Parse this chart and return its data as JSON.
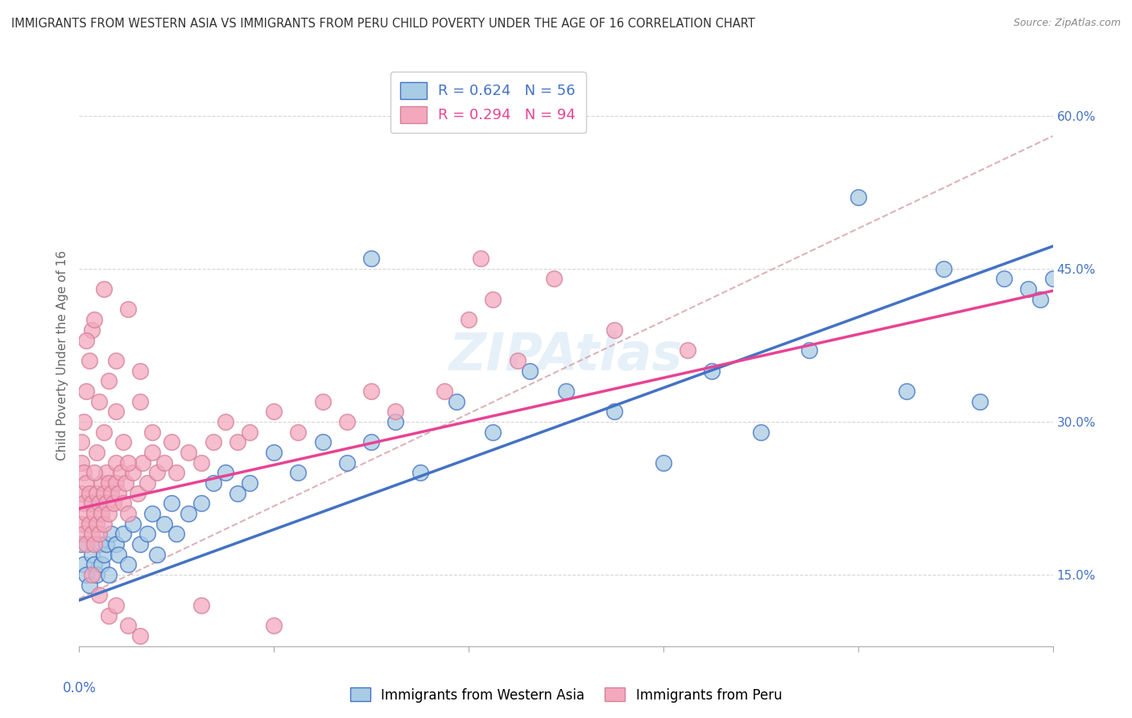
{
  "title": "IMMIGRANTS FROM WESTERN ASIA VS IMMIGRANTS FROM PERU CHILD POVERTY UNDER THE AGE OF 16 CORRELATION CHART",
  "source": "Source: ZipAtlas.com",
  "ylabel": "Child Poverty Under the Age of 16",
  "yticks": [
    0.15,
    0.3,
    0.45,
    0.6
  ],
  "ytick_labels": [
    "15.0%",
    "30.0%",
    "45.0%",
    "60.0%"
  ],
  "xlim": [
    0.0,
    0.4
  ],
  "ylim": [
    0.08,
    0.65
  ],
  "legend1_r": "R = 0.624",
  "legend1_n": "N = 56",
  "legend2_r": "R = 0.294",
  "legend2_n": "N = 94",
  "color_western_asia": "#a8cce4",
  "color_peru": "#f4a8be",
  "color_line_western_asia": "#4472c4",
  "color_line_peru": "#e84393",
  "color_dashed": "#d4a0a8",
  "wa_line_x0": 0.0,
  "wa_line_y0": 0.125,
  "wa_line_x1": 0.4,
  "wa_line_y1": 0.472,
  "pe_line_x0": 0.0,
  "pe_line_y0": 0.215,
  "pe_line_x1": 0.15,
  "pe_line_y1": 0.295,
  "dash_line_x0": 0.1,
  "dash_line_y0": 0.24,
  "dash_line_x1": 0.4,
  "dash_line_y1": 0.58,
  "western_asia_x": [
    0.001,
    0.002,
    0.003,
    0.004,
    0.005,
    0.006,
    0.007,
    0.008,
    0.009,
    0.01,
    0.011,
    0.012,
    0.013,
    0.015,
    0.016,
    0.018,
    0.02,
    0.022,
    0.025,
    0.028,
    0.03,
    0.032,
    0.035,
    0.038,
    0.04,
    0.045,
    0.05,
    0.055,
    0.06,
    0.065,
    0.07,
    0.08,
    0.09,
    0.1,
    0.11,
    0.12,
    0.13,
    0.14,
    0.155,
    0.17,
    0.185,
    0.2,
    0.22,
    0.24,
    0.26,
    0.28,
    0.3,
    0.32,
    0.34,
    0.355,
    0.37,
    0.38,
    0.39,
    0.395,
    0.4,
    0.12
  ],
  "western_asia_y": [
    0.18,
    0.16,
    0.15,
    0.14,
    0.17,
    0.16,
    0.15,
    0.18,
    0.16,
    0.17,
    0.18,
    0.15,
    0.19,
    0.18,
    0.17,
    0.19,
    0.16,
    0.2,
    0.18,
    0.19,
    0.21,
    0.17,
    0.2,
    0.22,
    0.19,
    0.21,
    0.22,
    0.24,
    0.25,
    0.23,
    0.24,
    0.27,
    0.25,
    0.28,
    0.26,
    0.28,
    0.3,
    0.25,
    0.32,
    0.29,
    0.35,
    0.33,
    0.31,
    0.26,
    0.35,
    0.29,
    0.37,
    0.52,
    0.33,
    0.45,
    0.32,
    0.44,
    0.43,
    0.42,
    0.44,
    0.46
  ],
  "peru_x": [
    0.001,
    0.001,
    0.001,
    0.002,
    0.002,
    0.002,
    0.003,
    0.003,
    0.003,
    0.004,
    0.004,
    0.005,
    0.005,
    0.006,
    0.006,
    0.007,
    0.007,
    0.008,
    0.008,
    0.009,
    0.009,
    0.01,
    0.01,
    0.011,
    0.011,
    0.012,
    0.012,
    0.013,
    0.014,
    0.015,
    0.015,
    0.016,
    0.017,
    0.018,
    0.019,
    0.02,
    0.022,
    0.024,
    0.026,
    0.028,
    0.03,
    0.032,
    0.035,
    0.038,
    0.04,
    0.045,
    0.05,
    0.055,
    0.06,
    0.065,
    0.07,
    0.08,
    0.09,
    0.1,
    0.11,
    0.12,
    0.13,
    0.15,
    0.16,
    0.165,
    0.17,
    0.18,
    0.195,
    0.22,
    0.25,
    0.001,
    0.002,
    0.003,
    0.004,
    0.005,
    0.006,
    0.007,
    0.008,
    0.01,
    0.012,
    0.015,
    0.018,
    0.02,
    0.025,
    0.03,
    0.005,
    0.008,
    0.012,
    0.015,
    0.02,
    0.025,
    0.003,
    0.006,
    0.01,
    0.015,
    0.02,
    0.025,
    0.05,
    0.08
  ],
  "peru_y": [
    0.2,
    0.23,
    0.26,
    0.19,
    0.22,
    0.25,
    0.18,
    0.21,
    0.24,
    0.2,
    0.23,
    0.19,
    0.22,
    0.18,
    0.21,
    0.2,
    0.23,
    0.19,
    0.22,
    0.21,
    0.24,
    0.2,
    0.23,
    0.22,
    0.25,
    0.21,
    0.24,
    0.23,
    0.22,
    0.26,
    0.24,
    0.23,
    0.25,
    0.22,
    0.24,
    0.21,
    0.25,
    0.23,
    0.26,
    0.24,
    0.27,
    0.25,
    0.26,
    0.28,
    0.25,
    0.27,
    0.26,
    0.28,
    0.3,
    0.28,
    0.29,
    0.31,
    0.29,
    0.32,
    0.3,
    0.33,
    0.31,
    0.33,
    0.4,
    0.46,
    0.42,
    0.36,
    0.44,
    0.39,
    0.37,
    0.28,
    0.3,
    0.33,
    0.36,
    0.39,
    0.25,
    0.27,
    0.32,
    0.29,
    0.34,
    0.31,
    0.28,
    0.26,
    0.32,
    0.29,
    0.15,
    0.13,
    0.11,
    0.12,
    0.1,
    0.09,
    0.38,
    0.4,
    0.43,
    0.36,
    0.41,
    0.35,
    0.12,
    0.1
  ]
}
